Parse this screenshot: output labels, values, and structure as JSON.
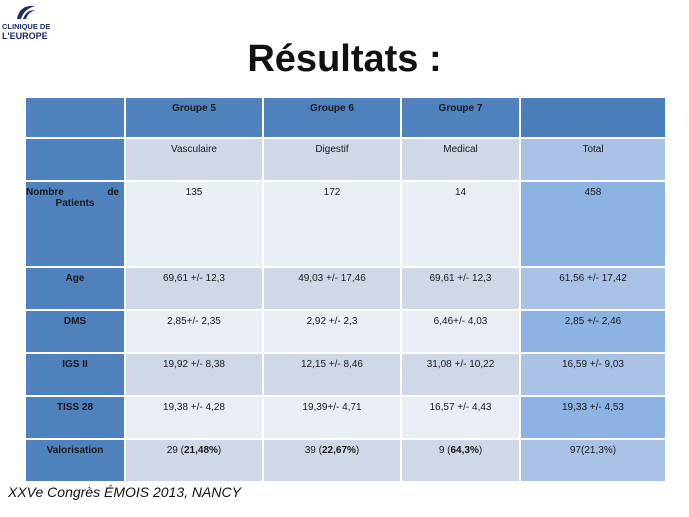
{
  "logo": {
    "line1": "CLINIQUE DE",
    "line2": "L'EUROPE",
    "mark_color": "#1d2a6e"
  },
  "title": "Résultats :",
  "table": {
    "group_headers": [
      "Groupe 5",
      "Groupe 6",
      "Groupe 7"
    ],
    "sub_headers": [
      "Vasculaire",
      "Digestif",
      "Medical",
      "Total"
    ],
    "patients_label_word1": "Nombre",
    "patients_label_word2": "de",
    "patients_label_word3": "Patients",
    "patients": [
      "135",
      "172",
      "14",
      "458"
    ],
    "rows": [
      {
        "label": "Age",
        "values": [
          "69,61 +/- 12,3",
          "49,03 +/- 17,46",
          "69,61 +/- 12,3",
          "61,56 +/- 17,42"
        ]
      },
      {
        "label": "DMS",
        "values": [
          "2,85+/- 2,35",
          "2,92 +/- 2,3",
          "6,46+/- 4,03",
          "2,85 +/- 2,46"
        ]
      },
      {
        "label": "IGS II",
        "values": [
          "19,92 +/- 8,38",
          "12,15 +/- 8,46",
          "31,08 +/- 10,22",
          "16,59 +/- 9,03"
        ]
      },
      {
        "label": "TISS 28",
        "values": [
          "19,38 +/- 4,28",
          "19,39+/- 4,71",
          "16,57 +/- 4,43",
          "19,33 +/- 4,53"
        ]
      }
    ],
    "valorisation": {
      "label": "Valorisation",
      "g5_prefix": "29 (",
      "g5_bold": "21,48%",
      "g5_suffix": ")",
      "g6_prefix": "39 (",
      "g6_bold": "22,67%",
      "g6_suffix": ")",
      "g7_prefix": "9 (",
      "g7_bold": "64,3%",
      "g7_suffix": ")",
      "total": "97(21,3%)"
    }
  },
  "footer": "XXVe Congrès ÉMOIS 2013, NANCY",
  "colors": {
    "header_blue": "#4f81bd",
    "row_light": "#d0d8e8",
    "row_lighter": "#e9edf4",
    "total_light": "#a9c2e6",
    "total_lighter": "#8db3e2"
  }
}
